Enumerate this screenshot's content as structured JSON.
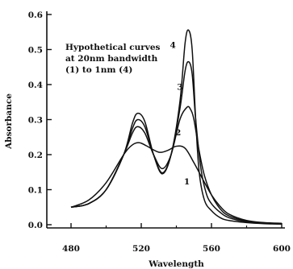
{
  "chart_data": {
    "type": "line",
    "xlabel": "Wavelength",
    "ylabel": "Absorbance",
    "xlim": [
      470,
      600
    ],
    "ylim": [
      -0.03,
      0.6
    ],
    "x_ticks": [
      480,
      520,
      560,
      600
    ],
    "x_tick_labels": [
      "480",
      "520",
      "560",
      "600"
    ],
    "y_ticks": [
      0.0,
      0.1,
      0.2,
      0.3,
      0.4,
      0.5,
      0.6
    ],
    "y_tick_labels": [
      "0.0",
      "0.1",
      "0.2",
      "0.3",
      "0.4",
      "0.5",
      "0.6"
    ],
    "grid": false,
    "annotation": [
      "Hypothetical curves",
      "at 20nm bandwidth",
      "(1) to 1nm (4)"
    ],
    "series": [
      {
        "name": "1",
        "x": [
          480,
          490,
          500,
          510,
          515,
          519,
          523,
          530,
          535,
          540,
          545,
          550,
          555,
          560,
          565,
          570,
          580,
          590,
          600
        ],
        "y": [
          0.05,
          0.07,
          0.12,
          0.2,
          0.228,
          0.234,
          0.225,
          0.207,
          0.212,
          0.224,
          0.218,
          0.177,
          0.13,
          0.085,
          0.052,
          0.03,
          0.012,
          0.006,
          0.004
        ]
      },
      {
        "name": "2",
        "x": [
          480,
          490,
          500,
          510,
          515,
          518,
          522,
          527,
          532,
          537,
          542,
          546,
          548,
          550,
          553,
          556,
          560,
          565,
          570,
          580,
          590,
          600
        ],
        "y": [
          0.05,
          0.06,
          0.1,
          0.2,
          0.262,
          0.28,
          0.262,
          0.2,
          0.16,
          0.2,
          0.3,
          0.335,
          0.33,
          0.3,
          0.21,
          0.14,
          0.085,
          0.045,
          0.025,
          0.01,
          0.004,
          0.002
        ]
      },
      {
        "name": "3",
        "x": [
          480,
          490,
          500,
          510,
          515,
          518,
          522,
          527,
          532,
          537,
          542,
          545,
          547,
          549,
          551,
          554,
          557,
          560,
          565,
          570,
          580,
          590,
          600
        ],
        "y": [
          0.05,
          0.06,
          0.1,
          0.2,
          0.275,
          0.3,
          0.28,
          0.2,
          0.148,
          0.2,
          0.33,
          0.44,
          0.465,
          0.43,
          0.3,
          0.16,
          0.09,
          0.06,
          0.035,
          0.02,
          0.008,
          0.004,
          0.002
        ]
      },
      {
        "name": "4",
        "x": [
          480,
          490,
          500,
          510,
          515,
          518,
          522,
          527,
          532,
          537,
          542,
          545,
          547,
          549,
          551,
          553,
          556,
          560,
          565,
          570,
          580,
          590,
          600
        ],
        "y": [
          0.05,
          0.06,
          0.1,
          0.2,
          0.29,
          0.318,
          0.295,
          0.2,
          0.145,
          0.2,
          0.35,
          0.52,
          0.555,
          0.5,
          0.3,
          0.15,
          0.07,
          0.04,
          0.02,
          0.012,
          0.006,
          0.003,
          0.002
        ]
      }
    ]
  }
}
